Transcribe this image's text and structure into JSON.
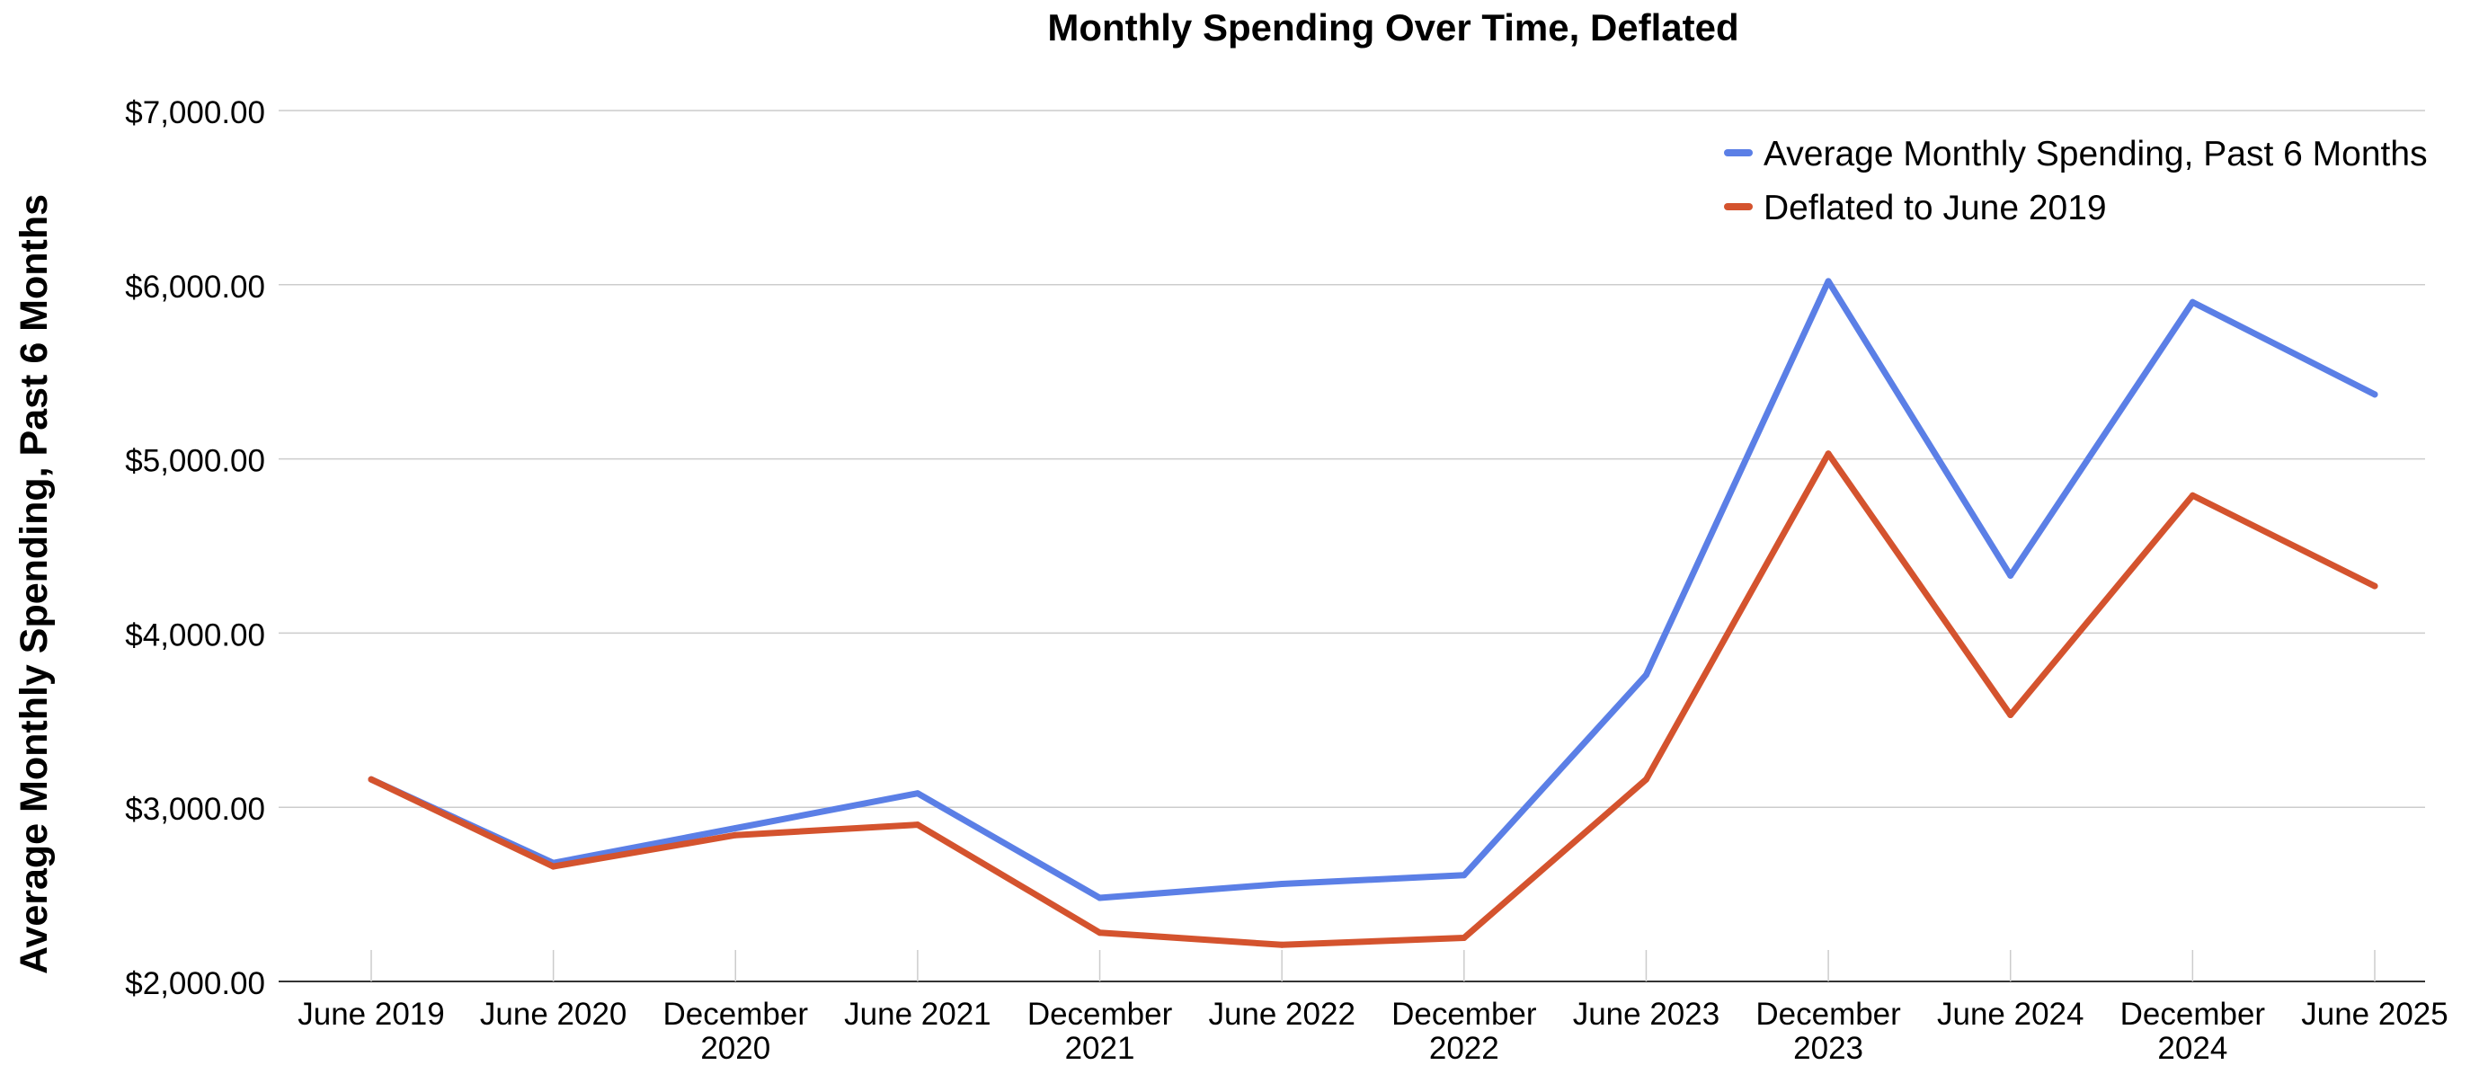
{
  "chart_data": {
    "type": "line",
    "title": "Monthly Spending Over Time, Deflated",
    "xlabel": "",
    "ylabel": "Average Monthly Spending, Past 6 Months",
    "categories": [
      [
        "June 2019"
      ],
      [
        "June 2020"
      ],
      [
        "December",
        "2020"
      ],
      [
        "June 2021"
      ],
      [
        "December",
        "2021"
      ],
      [
        "June 2022"
      ],
      [
        "December",
        "2022"
      ],
      [
        "June 2023"
      ],
      [
        "December",
        "2023"
      ],
      [
        "June 2024"
      ],
      [
        "December",
        "2024"
      ],
      [
        "June 2025"
      ]
    ],
    "ylim": [
      2000,
      7000
    ],
    "yticks": [
      2000,
      3000,
      4000,
      5000,
      6000,
      7000
    ],
    "ytick_labels": [
      "$2,000.00",
      "$3,000.00",
      "$4,000.00",
      "$5,000.00",
      "$6,000.00",
      "$7,000.00"
    ],
    "grid": true,
    "legend_position": "top-right",
    "series": [
      {
        "name": "Average Monthly Spending, Past 6 Months",
        "color": "#5b7fe6",
        "values": [
          3160,
          2680,
          2880,
          3080,
          2480,
          2560,
          2610,
          3760,
          6020,
          4330,
          5900,
          5370
        ]
      },
      {
        "name": "Deflated to June 2019",
        "color": "#d4532e",
        "values": [
          3160,
          2660,
          2840,
          2900,
          2280,
          2210,
          2250,
          3160,
          5030,
          3530,
          4790,
          4270
        ]
      }
    ]
  }
}
